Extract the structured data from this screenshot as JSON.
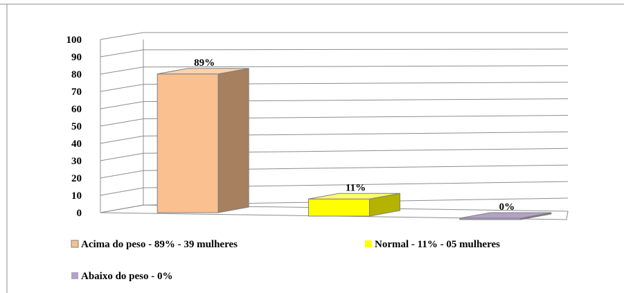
{
  "chart_data": {
    "type": "bar",
    "categories": [
      "Acima do peso - 89% - 39 mulheres",
      "Normal - 11% - 05 mulheres",
      "Abaixo do peso - 0%"
    ],
    "values": [
      89,
      11,
      0
    ],
    "data_labels": [
      "89%",
      "11%",
      "0%"
    ],
    "ylim": [
      0,
      100
    ],
    "y_ticks": [
      "0",
      "10",
      "20",
      "30",
      "40",
      "50",
      "60",
      "70",
      "80",
      "90",
      "100"
    ],
    "grid": true,
    "style": "3d",
    "legend": {
      "placement": "bottom",
      "entries": [
        {
          "label": "Acima do peso - 89% - 39 mulheres",
          "color": "#FAC090"
        },
        {
          "label": "Normal - 11% - 05 mulheres",
          "color": "#FFFF00"
        },
        {
          "label": "Abaixo do peso - 0%",
          "color": "#B3A2C7"
        }
      ]
    },
    "bar_colors": [
      {
        "front": "#FAC090",
        "side": "#A6805F",
        "top": "#FCD2AE"
      },
      {
        "front": "#FFFF00",
        "side": "#B3B300",
        "top": "#FFFF66"
      },
      {
        "front": "#B3A2C7",
        "side": "#7F7391",
        "top": "#B3A2C7"
      }
    ]
  }
}
